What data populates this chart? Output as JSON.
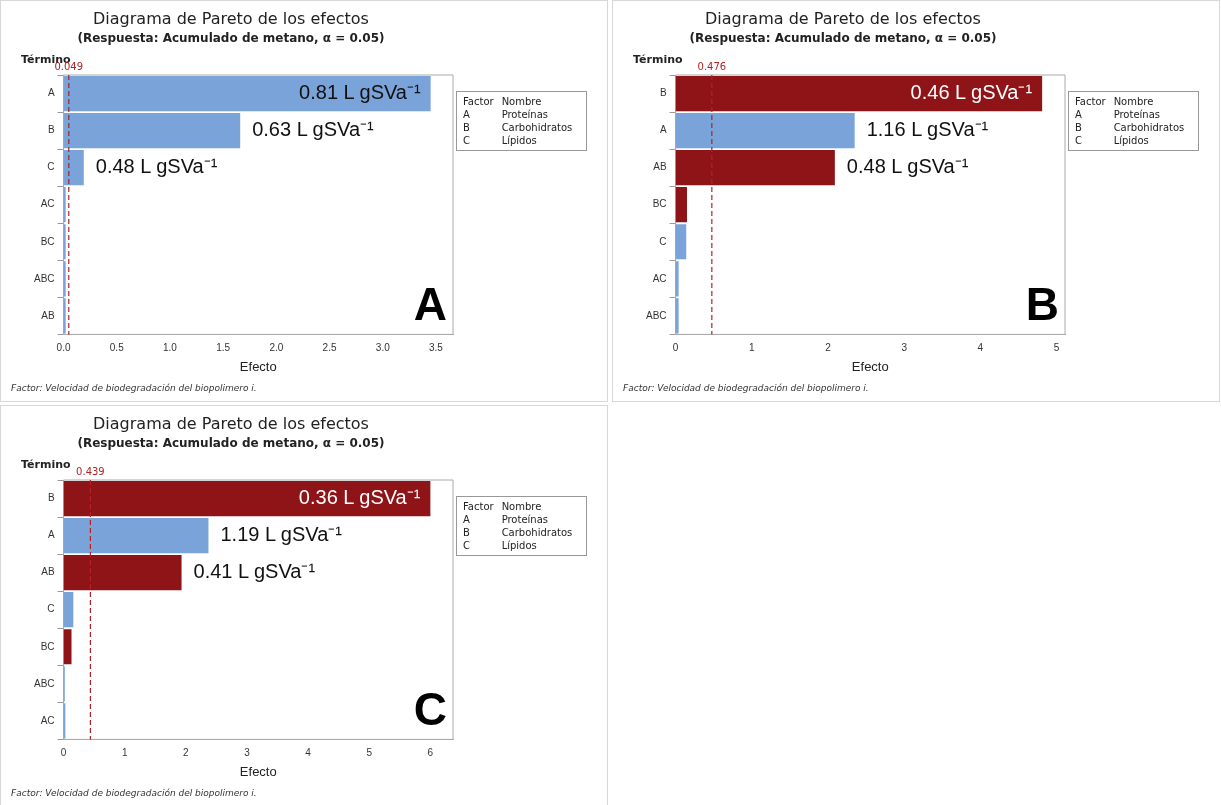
{
  "chart_data": [
    {
      "type": "bar",
      "orientation": "horizontal",
      "title": "Diagrama de Pareto de los efectos",
      "subtitle": "(Respuesta: Acumulado de metano, α = 0.05)",
      "xlabel": "Efecto",
      "ylabel": "Término",
      "categories": [
        "A",
        "B",
        "C",
        "AC",
        "BC",
        "ABC",
        "AB"
      ],
      "values": [
        3.45,
        1.66,
        0.19,
        0.02,
        0.02,
        0.02,
        0.02
      ],
      "colors": [
        "#7aa3d9",
        "#7aa3d9",
        "#7aa3d9",
        "#7aa3d9",
        "#7aa3d9",
        "#7aa3d9",
        "#7aa3d9"
      ],
      "xlim": [
        0,
        3.66
      ],
      "xticks": [
        {
          "value": 0,
          "label": "0.0"
        },
        {
          "value": 0.5,
          "label": "0.5"
        },
        {
          "value": 1,
          "label": "1.0"
        },
        {
          "value": 1.5,
          "label": "1.5"
        },
        {
          "value": 2,
          "label": "2.0"
        },
        {
          "value": 2.5,
          "label": "2.5"
        },
        {
          "value": 3,
          "label": "3.0"
        },
        {
          "value": 3.5,
          "label": "3.5"
        }
      ],
      "ref_lines": [
        {
          "axis": "x",
          "value": 0.049,
          "label": "0.049",
          "color": "#b22222",
          "line_style": "dashed"
        }
      ],
      "grid": false,
      "legend": false,
      "annotations": [
        "0.81 L gSVa⁻¹",
        "0.63 L gSVa⁻¹",
        "0.48 L gSVa⁻¹",
        "A",
        "Factor: Velocidad de biodegradación del biopolimero i.",
        "Factor Nombre",
        "A Proteínas",
        "B Carbohidratos",
        "C Lípidos"
      ]
    },
    {
      "type": "bar",
      "orientation": "horizontal",
      "title": "Diagrama de Pareto de los efectos",
      "subtitle": "(Respuesta: Acumulado de metano, α = 0.05)",
      "xlabel": "Efecto",
      "ylabel": "Término",
      "categories": [
        "B",
        "A",
        "AB",
        "BC",
        "C",
        "AC",
        "ABC"
      ],
      "values": [
        4.81,
        2.35,
        2.09,
        0.15,
        0.14,
        0.04,
        0.04
      ],
      "colors": [
        "#8e1418",
        "#7aa3d9",
        "#8e1418",
        "#8e1418",
        "#7aa3d9",
        "#7aa3d9",
        "#7aa3d9"
      ],
      "xlim": [
        0,
        5.11
      ],
      "xticks": [
        0,
        1,
        2,
        3,
        4,
        5
      ],
      "ref_lines": [
        {
          "axis": "x",
          "value": 0.476,
          "label": "0.476",
          "color": "#b22222",
          "line_style": "dashed"
        }
      ],
      "grid": false,
      "legend": false,
      "annotations": [
        "0.46 L gSVa⁻¹",
        "1.16 L gSVa⁻¹",
        "0.48 L gSVa⁻¹",
        "B",
        "Factor: Velocidad de biodegradación del biopolimero i.",
        "Factor Nombre",
        "A Proteínas",
        "B Carbohidratos",
        "C Lípidos"
      ]
    },
    {
      "type": "bar",
      "orientation": "horizontal",
      "title": "Diagrama de Pareto de los efectos",
      "subtitle": "(Respuesta: Acumulado de metano, α = 0.05)",
      "xlabel": "Efecto",
      "ylabel": "Término",
      "categories": [
        "B",
        "A",
        "AB",
        "C",
        "BC",
        "ABC",
        "AC"
      ],
      "values": [
        6.0,
        2.37,
        1.93,
        0.16,
        0.13,
        0.02,
        0.03
      ],
      "colors": [
        "#8e1418",
        "#7aa3d9",
        "#8e1418",
        "#7aa3d9",
        "#8e1418",
        "#7aa3d9",
        "#7aa3d9"
      ],
      "xlim": [
        0,
        6.37
      ],
      "xticks": [
        0,
        1,
        2,
        3,
        4,
        5,
        6
      ],
      "ref_lines": [
        {
          "axis": "x",
          "value": 0.439,
          "label": "0.439",
          "color": "#b22222",
          "line_style": "dashed"
        }
      ],
      "grid": false,
      "legend": false,
      "annotations": [
        "0.36 L gSVa⁻¹",
        "1.19 L gSVa⁻¹",
        "0.41 L gSVa⁻¹",
        "C",
        "Factor: Velocidad de biodegradación del biopolimero i.",
        "Factor Nombre",
        "A Proteínas",
        "B Carbohidratos",
        "C Lípidos"
      ]
    }
  ]
}
